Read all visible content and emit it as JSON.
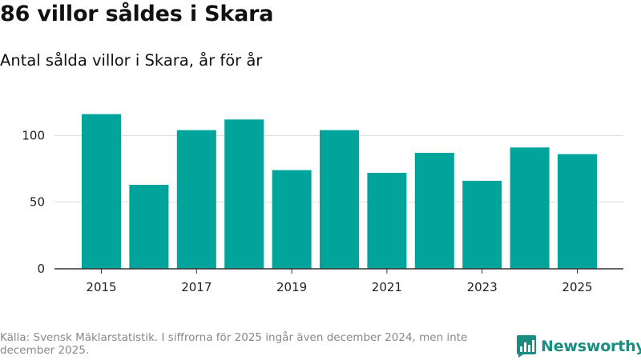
{
  "title": "86 villor såldes i Skara",
  "subtitle": "Antal sålda villor i Skara, år för år",
  "source_note": "Källa: Svensk Mäklarstatistik. I siffrorna för 2025 ingår även december 2024, men inte december 2025.",
  "brand": {
    "name": "Newsworthy",
    "logo_icon": "bar-chart-logo-icon"
  },
  "colors": {
    "bar": "#00a49a",
    "grid": "#dddddd",
    "axis": "#333333",
    "brand": "#1a8c80"
  },
  "chart_data": {
    "type": "bar",
    "title": "86 villor såldes i Skara",
    "subtitle": "Antal sålda villor i Skara, år för år",
    "xlabel": "",
    "ylabel": "",
    "categories": [
      "2015",
      "2016",
      "2017",
      "2018",
      "2019",
      "2020",
      "2021",
      "2022",
      "2023",
      "2024",
      "2025"
    ],
    "values": [
      116,
      63,
      104,
      112,
      74,
      104,
      72,
      87,
      66,
      91,
      86
    ],
    "xticks": [
      "2015",
      "2017",
      "2019",
      "2021",
      "2023",
      "2025"
    ],
    "yticks": [
      0,
      50,
      100
    ],
    "ylim": [
      0,
      120
    ],
    "grid": true
  }
}
